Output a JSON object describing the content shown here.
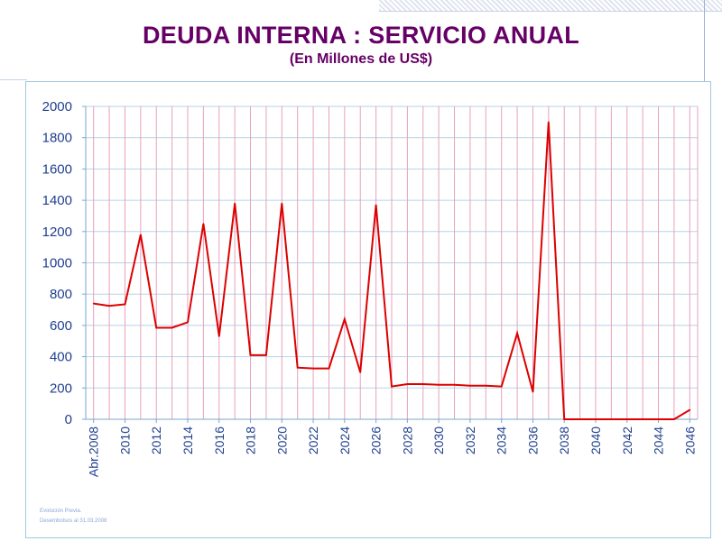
{
  "chart_data": {
    "type": "line",
    "title": "DEUDA INTERNA : SERVICIO ANUAL",
    "subtitle": "(En Millones de US$)",
    "xlabel": "",
    "ylabel": "",
    "ylim": [
      0,
      2000
    ],
    "yticks": [
      0,
      200,
      400,
      600,
      800,
      1000,
      1200,
      1400,
      1600,
      1800,
      2000
    ],
    "xtick_labels": [
      "Abr.2008",
      "2010",
      "2012",
      "2014",
      "2016",
      "2018",
      "2020",
      "2022",
      "2024",
      "2026",
      "2028",
      "2030",
      "2032",
      "2034",
      "2036",
      "2038",
      "2040",
      "2042",
      "2044",
      "2046"
    ],
    "grid": true,
    "series": [
      {
        "name": "Servicio anual",
        "color": "#dd0000",
        "x": [
          2008,
          2009,
          2010,
          2011,
          2012,
          2013,
          2014,
          2015,
          2016,
          2017,
          2018,
          2019,
          2020,
          2021,
          2022,
          2023,
          2024,
          2025,
          2026,
          2027,
          2028,
          2029,
          2030,
          2031,
          2032,
          2033,
          2034,
          2035,
          2036,
          2037,
          2038,
          2039,
          2040,
          2041,
          2042,
          2043,
          2044,
          2045,
          2046
        ],
        "values": [
          740,
          725,
          735,
          1180,
          585,
          585,
          620,
          1250,
          530,
          1380,
          410,
          410,
          1380,
          330,
          325,
          325,
          640,
          300,
          1370,
          210,
          225,
          225,
          220,
          220,
          215,
          215,
          210,
          550,
          175,
          1900,
          0,
          0,
          0,
          0,
          0,
          0,
          0,
          0,
          60
        ]
      }
    ]
  },
  "footnote": {
    "line1": "Evolución Previa.",
    "line2": "Desembolsos al 31.03.2008"
  }
}
